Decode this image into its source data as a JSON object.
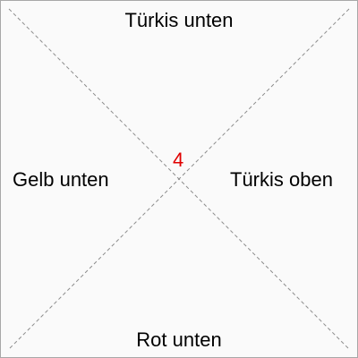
{
  "zones": {
    "top": "Türkis unten",
    "left": "Gelb unten",
    "right": "Türkis oben",
    "bottom": "Rot unten"
  },
  "center": {
    "number": "4",
    "color": "#e00000"
  },
  "colors": {
    "background": "#fafafa",
    "border": "#a8a8a8",
    "diagonal": "#8c8c8c",
    "text": "#000000"
  }
}
